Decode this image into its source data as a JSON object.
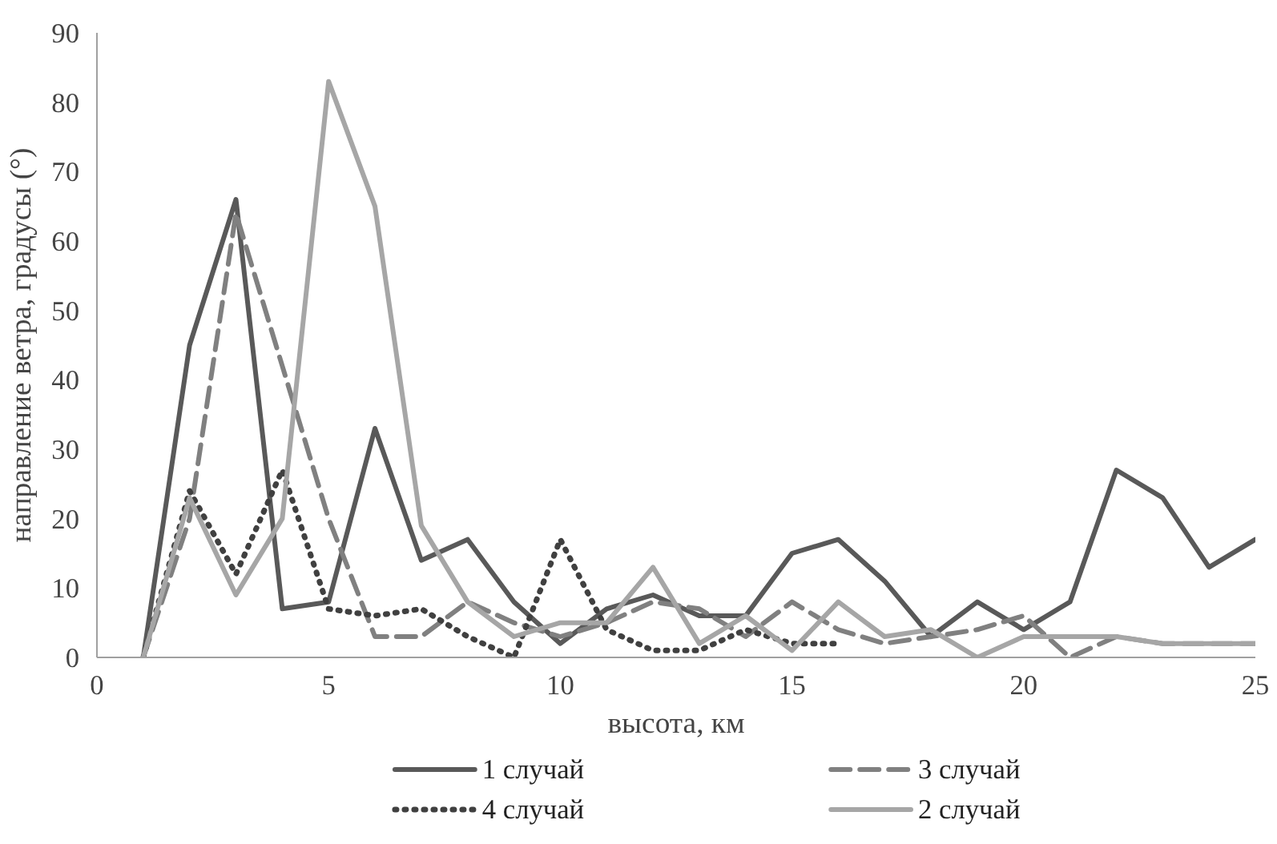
{
  "chart_data": {
    "type": "line",
    "xlabel": "высота, км",
    "ylabel": "направление ветра, градусы (°)",
    "xlim": [
      0,
      25
    ],
    "xticks": [
      0,
      5,
      10,
      15,
      20,
      25
    ],
    "ylim": [
      0,
      90
    ],
    "yticks": [
      0,
      10,
      20,
      30,
      40,
      50,
      60,
      70,
      80,
      90
    ],
    "grid": false,
    "legend": "bottom",
    "series": [
      {
        "name": "1 случай",
        "color": "#595959",
        "line_style": "solid",
        "x": [
          1,
          2,
          3,
          4,
          5,
          6,
          7,
          8,
          9,
          10,
          11,
          12,
          13,
          14,
          15,
          16,
          17,
          18,
          19,
          20,
          21,
          22,
          23,
          24,
          25
        ],
        "values": [
          0,
          45,
          66,
          7,
          8,
          33,
          14,
          17,
          8,
          2,
          7,
          9,
          6,
          6,
          15,
          17,
          11,
          3,
          8,
          4,
          8,
          27,
          23,
          13,
          17
        ]
      },
      {
        "name": "3 случай",
        "color": "#808080",
        "line_style": "dashed",
        "x": [
          1,
          2,
          3,
          4,
          5,
          6,
          7,
          8,
          9,
          10,
          11,
          12,
          13,
          14,
          15,
          16,
          17,
          18,
          19,
          20,
          21,
          22,
          23,
          24,
          25
        ],
        "values": [
          0,
          20,
          64,
          42,
          20,
          3,
          3,
          8,
          5,
          3,
          5,
          8,
          7,
          3,
          8,
          4,
          2,
          3,
          4,
          6,
          0,
          3,
          2,
          2,
          2
        ]
      },
      {
        "name": "4 случай",
        "color": "#404040",
        "line_style": "dotted",
        "x": [
          1,
          2,
          3,
          4,
          5,
          6,
          7,
          8,
          9,
          10,
          11,
          12,
          13,
          14,
          15,
          16
        ],
        "values": [
          0,
          24,
          12,
          27,
          7,
          6,
          7,
          3,
          0,
          17,
          4,
          1,
          1,
          4,
          2,
          2
        ]
      },
      {
        "name": "2 случай",
        "color": "#a6a6a6",
        "line_style": "solid",
        "x": [
          1,
          2,
          3,
          4,
          5,
          6,
          7,
          8,
          9,
          10,
          11,
          12,
          13,
          14,
          15,
          16,
          17,
          18,
          19,
          20,
          21,
          22,
          23,
          24,
          25
        ],
        "values": [
          0,
          23,
          9,
          20,
          83,
          65,
          19,
          8,
          3,
          5,
          5,
          13,
          2,
          6,
          1,
          8,
          3,
          4,
          0,
          3,
          3,
          3,
          2,
          2,
          2
        ]
      }
    ]
  }
}
